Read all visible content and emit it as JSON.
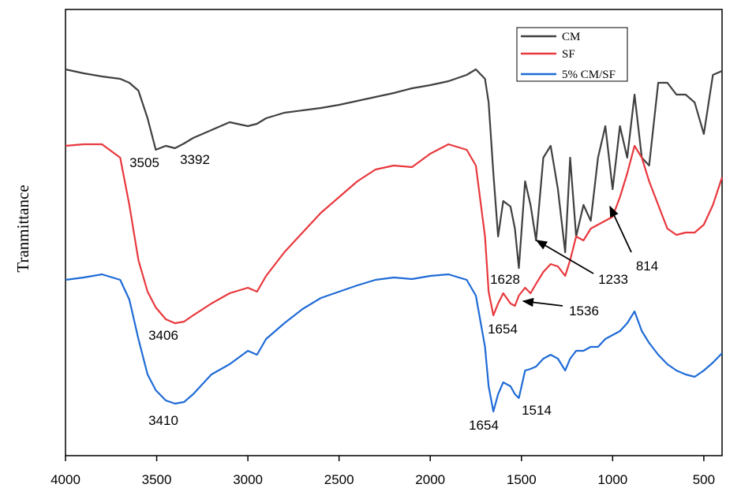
{
  "chart_data": {
    "type": "line",
    "y_label": "Tranmittance",
    "x": [
      4000,
      3900,
      3800,
      3700,
      3650,
      3600,
      3550,
      3505,
      3450,
      3400,
      3350,
      3300,
      3200,
      3100,
      3000,
      2950,
      2900,
      2800,
      2700,
      2600,
      2500,
      2400,
      2300,
      2200,
      2100,
      2000,
      1900,
      1800,
      1750,
      1700,
      1680,
      1654,
      1628,
      1600,
      1560,
      1536,
      1514,
      1480,
      1450,
      1420,
      1380,
      1340,
      1300,
      1260,
      1233,
      1200,
      1160,
      1120,
      1080,
      1040,
      1000,
      960,
      920,
      880,
      840,
      800,
      750,
      700,
      650,
      600,
      550,
      500,
      450,
      400
    ],
    "series": [
      {
        "name": "CM",
        "color": "#404040",
        "values": [
          490,
          485,
          481,
          478,
          473,
          463,
          428,
          388,
          393,
          390,
          396,
          403,
          413,
          423,
          418,
          421,
          428,
          435,
          438,
          441,
          445,
          450,
          455,
          460,
          466,
          470,
          475,
          483,
          490,
          478,
          448,
          358,
          278,
          323,
          316,
          288,
          238,
          348,
          318,
          273,
          378,
          393,
          338,
          258,
          378,
          278,
          318,
          298,
          378,
          418,
          338,
          418,
          378,
          458,
          378,
          368,
          473,
          473,
          458,
          458,
          448,
          408,
          483,
          488
        ]
      },
      {
        "name": "SF",
        "color": "#e8383d",
        "values": [
          393,
          395,
          395,
          378,
          318,
          248,
          208,
          188,
          173,
          168,
          170,
          178,
          193,
          206,
          213,
          208,
          228,
          258,
          283,
          308,
          328,
          348,
          363,
          368,
          366,
          383,
          395,
          388,
          368,
          278,
          208,
          178,
          193,
          206,
          193,
          190,
          203,
          213,
          206,
          218,
          233,
          243,
          240,
          228,
          248,
          278,
          273,
          288,
          293,
          298,
          303,
          328,
          358,
          393,
          378,
          348,
          318,
          288,
          280,
          283,
          283,
          293,
          318,
          353
        ]
      },
      {
        "name": "5% CM/SF",
        "color": "#1f6bd6",
        "values": [
          223,
          226,
          230,
          223,
          198,
          148,
          103,
          83,
          70,
          66,
          68,
          78,
          103,
          116,
          133,
          128,
          148,
          168,
          186,
          200,
          208,
          216,
          223,
          226,
          224,
          228,
          230,
          223,
          203,
          138,
          88,
          56,
          78,
          93,
          88,
          78,
          73,
          108,
          110,
          113,
          123,
          128,
          123,
          108,
          123,
          133,
          133,
          138,
          138,
          148,
          153,
          158,
          168,
          183,
          158,
          143,
          128,
          116,
          108,
          103,
          100,
          108,
          118,
          130
        ]
      }
    ],
    "xlim": [
      4000,
      400
    ],
    "xticks": [
      4000,
      3500,
      3000,
      2500,
      2000,
      1500,
      1000,
      500
    ],
    "ylim": [
      0,
      566
    ],
    "legend": "upper-right",
    "annotations": [
      "3505",
      "3392",
      "3406",
      "3410",
      "1628",
      "1654",
      "1233",
      "814",
      "1536",
      "1654",
      "1514"
    ]
  }
}
